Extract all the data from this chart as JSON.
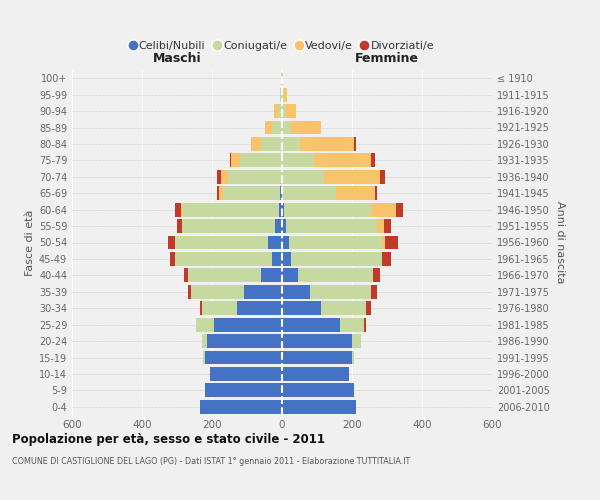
{
  "age_groups": [
    "0-4",
    "5-9",
    "10-14",
    "15-19",
    "20-24",
    "25-29",
    "30-34",
    "35-39",
    "40-44",
    "45-49",
    "50-54",
    "55-59",
    "60-64",
    "65-69",
    "70-74",
    "75-79",
    "80-84",
    "85-89",
    "90-94",
    "95-99",
    "100+"
  ],
  "anni_nascita": [
    "2006-2010",
    "2001-2005",
    "1996-2000",
    "1991-1995",
    "1986-1990",
    "1981-1985",
    "1976-1980",
    "1971-1975",
    "1966-1970",
    "1961-1965",
    "1956-1960",
    "1951-1955",
    "1946-1950",
    "1941-1945",
    "1936-1940",
    "1931-1935",
    "1926-1930",
    "1921-1925",
    "1916-1920",
    "1911-1915",
    "≤ 1910"
  ],
  "maschi_celibi": [
    235,
    220,
    205,
    220,
    215,
    195,
    130,
    110,
    60,
    30,
    40,
    20,
    10,
    5,
    0,
    0,
    0,
    0,
    0,
    0,
    0
  ],
  "maschi_coniugati": [
    0,
    0,
    0,
    5,
    15,
    50,
    100,
    150,
    210,
    275,
    265,
    265,
    275,
    165,
    155,
    120,
    60,
    30,
    12,
    5,
    2
  ],
  "maschi_vedovi": [
    0,
    0,
    0,
    0,
    0,
    0,
    0,
    0,
    0,
    0,
    0,
    0,
    5,
    10,
    20,
    25,
    30,
    20,
    10,
    2,
    0
  ],
  "maschi_divorziati": [
    0,
    0,
    0,
    0,
    0,
    0,
    5,
    10,
    10,
    15,
    20,
    15,
    15,
    5,
    10,
    5,
    0,
    0,
    0,
    0,
    0
  ],
  "femmine_nubili": [
    210,
    205,
    190,
    200,
    200,
    165,
    110,
    80,
    45,
    25,
    20,
    10,
    5,
    0,
    0,
    0,
    0,
    0,
    0,
    0,
    0
  ],
  "femmine_coniugate": [
    0,
    0,
    0,
    5,
    25,
    70,
    130,
    175,
    215,
    260,
    265,
    260,
    250,
    155,
    120,
    90,
    50,
    25,
    10,
    5,
    0
  ],
  "femmine_vedove": [
    0,
    0,
    0,
    0,
    0,
    0,
    0,
    0,
    0,
    0,
    10,
    20,
    70,
    110,
    160,
    165,
    155,
    85,
    30,
    10,
    2
  ],
  "femmine_divorziate": [
    0,
    0,
    0,
    0,
    0,
    5,
    15,
    15,
    20,
    25,
    35,
    20,
    20,
    5,
    15,
    10,
    5,
    0,
    0,
    0,
    0
  ],
  "color_celibi": "#4472C4",
  "color_coniugati": "#C5D9A0",
  "color_vedovi": "#F9C36B",
  "color_divorziati": "#C0392B",
  "xlim": 600,
  "title": "Popolazione per età, sesso e stato civile - 2011",
  "subtitle": "COMUNE DI CASTIGLIONE DEL LAGO (PG) - Dati ISTAT 1° gennaio 2011 - Elaborazione TUTTITALIA.IT",
  "ylabel_left": "Fasce di età",
  "ylabel_right": "Anni di nascita",
  "label_maschi": "Maschi",
  "label_femmine": "Femmine",
  "bg_color": "#f0f0f0",
  "bar_height": 0.85,
  "legend_labels": [
    "Celibi/Nubili",
    "Coniugati/e",
    "Vedovi/e",
    "Divorziati/e"
  ],
  "xticks": [
    -600,
    -400,
    -200,
    0,
    200,
    400,
    600
  ]
}
